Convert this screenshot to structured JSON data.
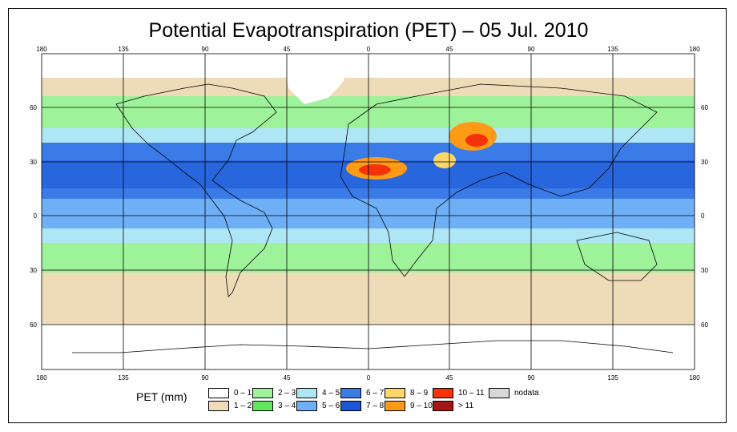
{
  "title": "Potential Evapotranspiration (PET) – 05 Jul. 2010",
  "axis": {
    "lon_labels": [
      "180",
      "135",
      "90",
      "45",
      "0",
      "45",
      "90",
      "135",
      "180"
    ],
    "lat_labels": [
      "60",
      "30",
      "0",
      "30",
      "60"
    ]
  },
  "legend": {
    "title": "PET (mm)",
    "items": [
      {
        "label": "0 – 1",
        "color": "#ffffff"
      },
      {
        "label": "1 – 2",
        "color": "#eedcb9"
      },
      {
        "label": "2 – 3",
        "color": "#9ef29a"
      },
      {
        "label": "3 – 4",
        "color": "#5ee85c"
      },
      {
        "label": "4 – 5",
        "color": "#aee6f5"
      },
      {
        "label": "5 – 6",
        "color": "#6eaff5"
      },
      {
        "label": "6 – 7",
        "color": "#3b7be8"
      },
      {
        "label": "7 – 8",
        "color": "#1a56d6"
      },
      {
        "label": "8 – 9",
        "color": "#fdd66a"
      },
      {
        "label": "9 – 10",
        "color": "#fd9b16"
      },
      {
        "label": "10 – 11",
        "color": "#f5320a"
      },
      {
        "label": "> 11",
        "color": "#a61414"
      },
      {
        "label": "nodata",
        "color": "#d8d8d8"
      }
    ]
  }
}
